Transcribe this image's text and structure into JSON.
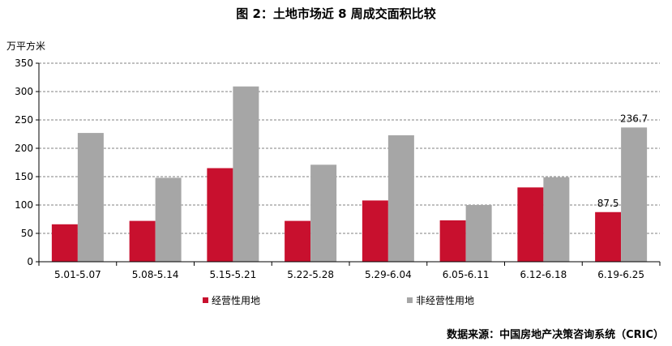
{
  "title": "图 2：土地市场近 8 周成交面积比较",
  "unit": "万平方米",
  "source": "数据来源：中国房地产决策咨询系统（CRIC）",
  "colors": {
    "series1": "#C8102E",
    "series2": "#A6A6A6",
    "grid": "#808080",
    "axis": "#000000"
  },
  "chart_data": {
    "type": "bar",
    "categories": [
      "5.01-5.07",
      "5.08-5.14",
      "5.15-5.21",
      "5.22-5.28",
      "5.29-6.04",
      "6.05-6.11",
      "6.12-6.18",
      "6.19-6.25"
    ],
    "series": [
      {
        "name": "经营性用地",
        "values": [
          66,
          72,
          165,
          72,
          108,
          73,
          131,
          87.5
        ]
      },
      {
        "name": "非经营性用地",
        "values": [
          227,
          148,
          309,
          171,
          223,
          100,
          149,
          236.7
        ]
      }
    ],
    "data_labels": [
      {
        "series": 0,
        "index": 7,
        "text": "87.5"
      },
      {
        "series": 1,
        "index": 7,
        "text": "236.7"
      }
    ],
    "yticks": [
      "0",
      "50",
      "100",
      "150",
      "200",
      "250",
      "300",
      "350"
    ],
    "ylim": [
      0,
      350
    ],
    "grid": true,
    "legend_position": "bottom"
  }
}
